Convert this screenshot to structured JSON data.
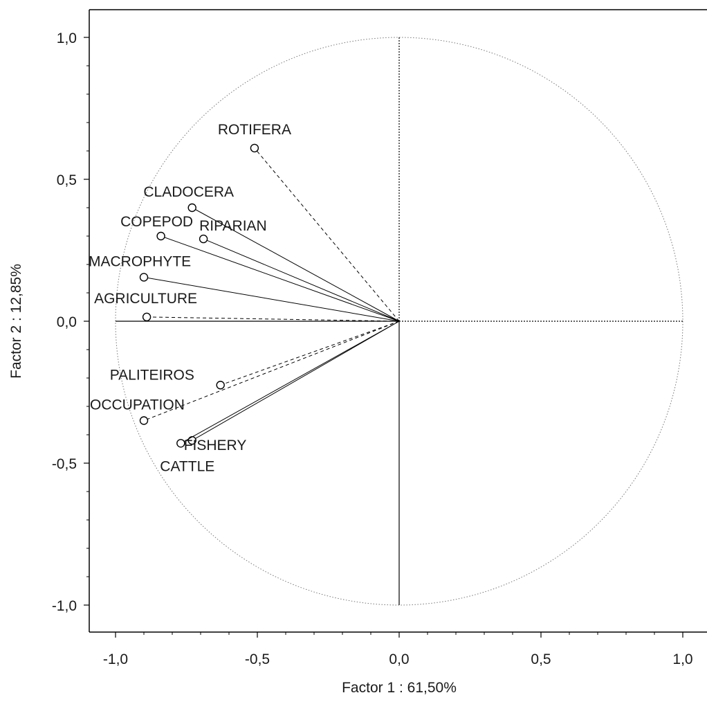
{
  "chart_data": {
    "type": "scatter",
    "title": "",
    "xlabel": "Factor 1 : 61,50%",
    "ylabel": "Factor 2 : 12,85%",
    "xlim": [
      -1.1,
      1.1
    ],
    "ylim": [
      -1.1,
      1.1
    ],
    "x_ticks": [
      -1.0,
      -0.5,
      0.0,
      0.5,
      1.0
    ],
    "x_tick_labels": [
      "-1,0",
      "-0,5",
      "0,0",
      "0,5",
      "1,0"
    ],
    "y_ticks": [
      1.0,
      0.5,
      0.0,
      -0.5,
      -1.0
    ],
    "y_tick_labels": [
      "1,0",
      "0,5",
      "0,0",
      "-0,5",
      "-1,0"
    ],
    "grid": false,
    "unit_circle": true,
    "points": [
      {
        "label": "ROTIFERA",
        "x": -0.51,
        "y": 0.61,
        "line": "dashed"
      },
      {
        "label": "CLADOCERA",
        "x": -0.73,
        "y": 0.4,
        "line": "solid"
      },
      {
        "label": "COPEPOD",
        "x": -0.84,
        "y": 0.3,
        "line": "solid"
      },
      {
        "label": "RIPARIAN",
        "x": -0.69,
        "y": 0.29,
        "line": "solid"
      },
      {
        "label": "MACROPHYTE",
        "x": -0.9,
        "y": 0.155,
        "line": "solid"
      },
      {
        "label": "AGRICULTURE",
        "x": -0.89,
        "y": 0.015,
        "line": "dashed"
      },
      {
        "label": "PALITEIROS",
        "x": -0.63,
        "y": -0.225,
        "line": "dashed"
      },
      {
        "label": "OCCUPATION",
        "x": -0.9,
        "y": -0.35,
        "line": "dashed"
      },
      {
        "label": "FISHERY",
        "x": -0.73,
        "y": -0.42,
        "line": "solid"
      },
      {
        "label": "CATTLE",
        "x": -0.77,
        "y": -0.43,
        "line": "solid"
      }
    ]
  }
}
